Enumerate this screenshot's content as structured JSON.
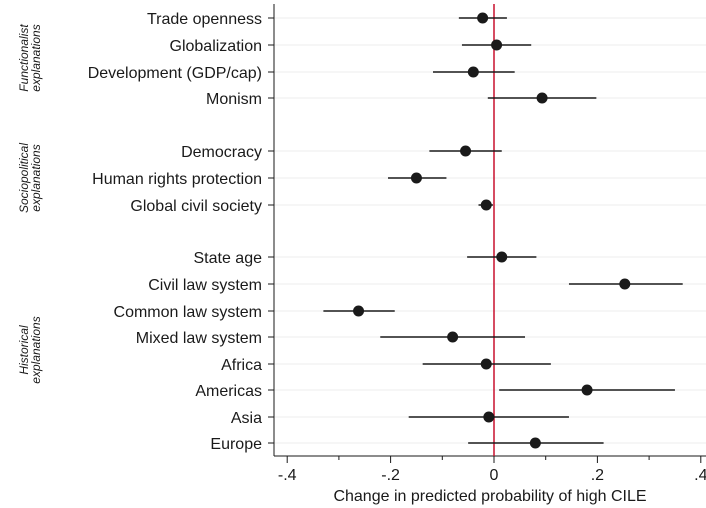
{
  "chart_data": {
    "type": "scatter",
    "subtype": "coefficient plot with confidence intervals",
    "xlabel": "Change in predicted probability of high CILE",
    "xlim": [
      -0.42,
      0.42
    ],
    "xticks": [
      -0.4,
      -0.2,
      0,
      0.2,
      0.4
    ],
    "xtick_labels": [
      "-.4",
      "-.2",
      "0",
      ".2",
      ".4"
    ],
    "reference_line": {
      "x": 0,
      "color": "#c8102e"
    },
    "grid": "horizontal",
    "groups": [
      {
        "label": "Functionalist explanations",
        "items": [
          "Trade openness",
          "Globalization",
          "Development (GDP/cap)",
          "Monism"
        ]
      },
      {
        "label": "Sociopolitical explanations",
        "items": [
          "Democracy",
          "Human rights protection",
          "Global civil society"
        ]
      },
      {
        "label": "Historical explanations",
        "items": [
          "State age",
          "Civil law system",
          "Common law system",
          "Mixed law system",
          "Africa",
          "Americas",
          "Asia",
          "Europe"
        ]
      }
    ],
    "points": [
      {
        "label": "Trade openness",
        "estimate": -0.022,
        "lower": -0.068,
        "upper": 0.025
      },
      {
        "label": "Globalization",
        "estimate": 0.005,
        "lower": -0.062,
        "upper": 0.072
      },
      {
        "label": "Development (GDP/cap)",
        "estimate": -0.04,
        "lower": -0.118,
        "upper": 0.04
      },
      {
        "label": "Monism",
        "estimate": 0.093,
        "lower": -0.012,
        "upper": 0.198
      },
      {
        "label": "Democracy",
        "estimate": -0.055,
        "lower": -0.125,
        "upper": 0.015
      },
      {
        "label": "Human rights protection",
        "estimate": -0.15,
        "lower": -0.205,
        "upper": -0.092
      },
      {
        "label": "Global civil society",
        "estimate": -0.015,
        "lower": -0.03,
        "upper": -0.002
      },
      {
        "label": "State age",
        "estimate": 0.015,
        "lower": -0.052,
        "upper": 0.082
      },
      {
        "label": "Civil law system",
        "estimate": 0.253,
        "lower": 0.145,
        "upper": 0.365
      },
      {
        "label": "Common law system",
        "estimate": -0.262,
        "lower": -0.33,
        "upper": -0.192
      },
      {
        "label": "Mixed law system",
        "estimate": -0.08,
        "lower": -0.22,
        "upper": 0.06
      },
      {
        "label": "Africa",
        "estimate": -0.015,
        "lower": -0.138,
        "upper": 0.11
      },
      {
        "label": "Americas",
        "estimate": 0.18,
        "lower": 0.01,
        "upper": 0.35
      },
      {
        "label": "Asia",
        "estimate": -0.01,
        "lower": -0.165,
        "upper": 0.145
      },
      {
        "label": "Europe",
        "estimate": 0.08,
        "lower": -0.05,
        "upper": 0.212
      }
    ]
  },
  "colors": {
    "point": "#1a1a1a",
    "ci_line": "#1a1a1a",
    "reference_line": "#c8102e",
    "grid": "#eeeeee",
    "axis": "#1a1a1a"
  }
}
